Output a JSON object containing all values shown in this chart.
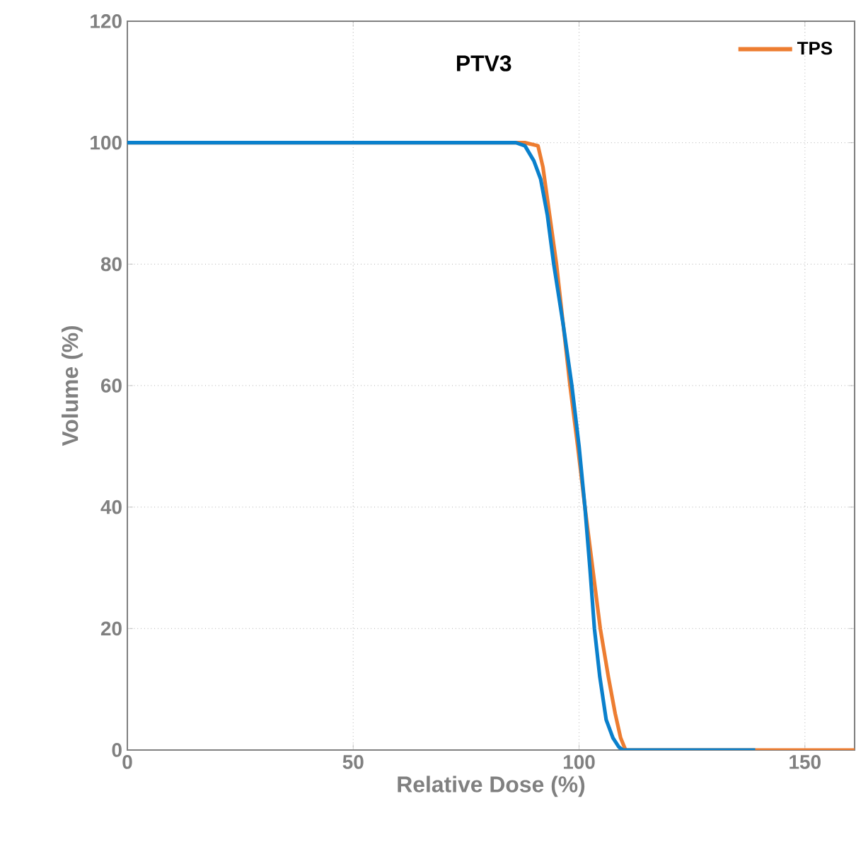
{
  "chart_data": {
    "type": "line",
    "title": "PTV3",
    "xlabel": "Relative Dose (%)",
    "ylabel": "Volume (%)",
    "xlim": [
      0,
      161
    ],
    "ylim": [
      0,
      120
    ],
    "xticks": [
      0,
      50,
      100,
      150
    ],
    "yticks": [
      0,
      20,
      40,
      60,
      80,
      100,
      120
    ],
    "grid": true,
    "legend": "top right",
    "line_style": "solid",
    "marker": "none",
    "series": [
      {
        "name": "TPS",
        "color": "#ed7d31",
        "x": [
          0,
          88,
          90.9,
          92,
          93.5,
          95,
          96.5,
          98,
          99.7,
          101.3,
          103,
          104.7,
          106.5,
          108,
          109.2,
          110.3,
          120,
          140,
          161
        ],
        "values": [
          100,
          100,
          99.5,
          96,
          88,
          80,
          70,
          60,
          50,
          40,
          30,
          20,
          12,
          6,
          2,
          0,
          0,
          0,
          0
        ]
      },
      {
        "color": "#0a80cc",
        "x": [
          0,
          86,
          88,
          90,
          91.5,
          93,
          94.4,
          96.5,
          98.4,
          100,
          101.3,
          102.4,
          103.4,
          104.6,
          106,
          107.5,
          108.8,
          109.7,
          120,
          139
        ],
        "values": [
          100,
          100,
          99.5,
          97,
          94,
          88,
          80,
          70,
          60,
          50,
          40,
          30,
          20,
          12,
          5,
          2,
          0.5,
          0,
          0,
          0
        ]
      }
    ]
  }
}
